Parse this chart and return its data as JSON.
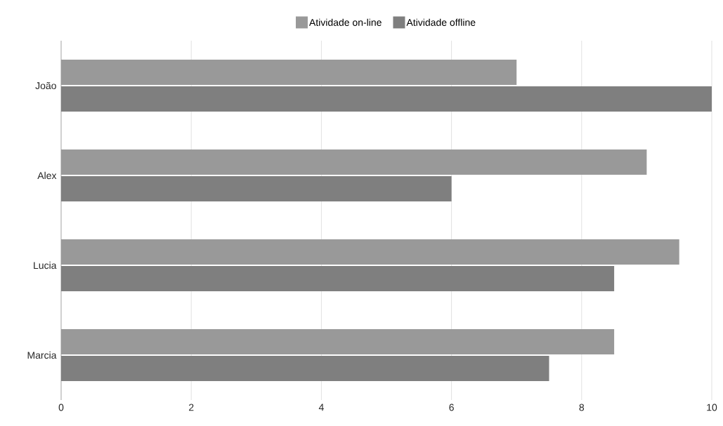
{
  "chart_data": {
    "type": "bar",
    "orientation": "horizontal",
    "categories": [
      "João",
      "Alex",
      "Lucia",
      "Marcia"
    ],
    "series": [
      {
        "name": "Atividade on-line",
        "color": "#999999",
        "values": [
          7,
          9,
          9.5,
          8.5
        ]
      },
      {
        "name": "Atividade offline",
        "color": "#7f7f7f",
        "values": [
          10,
          6,
          8.5,
          7.5
        ]
      }
    ],
    "xlim": [
      0,
      10
    ],
    "xticks": [
      0,
      2,
      4,
      6,
      8,
      10
    ],
    "grid": "x",
    "legend": "top"
  }
}
